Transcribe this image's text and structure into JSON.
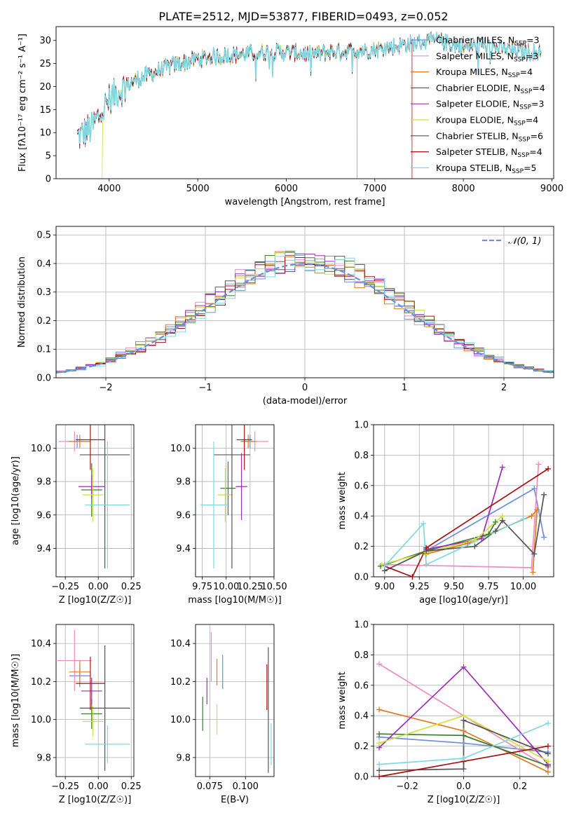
{
  "page_title": "PLATE=2512, MJD=53877, FIBERID=0493, z=0.052",
  "colors": {
    "Chabrier MILES": "#6b8ee0",
    "Salpeter MILES": "#f08cc0",
    "Kroupa MILES": "#e07a20",
    "Chabrier ELODIE": "#3c7a2e",
    "Salpeter ELODIE": "#9b2fb8",
    "Kroupa ELODIE": "#cfe040",
    "Chabrier STELIB": "#555555",
    "Salpeter STELIB": "#a81010",
    "Kroupa STELIB": "#7fd8e0",
    "normal_curve": "#6b8ee0",
    "grid": "#b0b0b0"
  },
  "chart_data": [
    {
      "type": "line",
      "id": "spectrum",
      "title": "PLATE=2512, MJD=53877, FIBERID=0493, z=0.052",
      "xlabel": "wavelength [Angstrom, rest frame]",
      "ylabel": "Flux [fλ10⁻¹⁷ erg cm⁻² s⁻¹ A⁻¹]",
      "xlim": [
        3400,
        9020
      ],
      "ylim": [
        0,
        33
      ],
      "xticks": [
        4000,
        5000,
        6000,
        7000,
        8000,
        9000
      ],
      "yticks": [
        0,
        5,
        10,
        15,
        20,
        25,
        30
      ],
      "grid": false,
      "legend_position": "right",
      "envelope_x": [
        3640,
        3800,
        3900,
        4000,
        4100,
        4300,
        4500,
        4700,
        5000,
        5200,
        5500,
        5800,
        6000,
        6300,
        6500,
        7000,
        7300,
        7500,
        7700,
        8000,
        8200,
        8500,
        8700
      ],
      "envelope_y": [
        9,
        11,
        14,
        17,
        19,
        21.5,
        23,
        24.5,
        26,
        26.5,
        27,
        27.5,
        27.5,
        27,
        27.5,
        28,
        29,
        29.5,
        30,
        28.5,
        29,
        28,
        27.5
      ],
      "series": [
        {
          "name": "Chabrier MILES, N_SSP=3",
          "color_key": "Chabrier MILES",
          "x_start": 3640,
          "x_end": 8880
        },
        {
          "name": "Salpeter MILES, N_SSP=3",
          "color_key": "Salpeter MILES",
          "x_start": 3640,
          "x_end": 8880
        },
        {
          "name": "Kroupa MILES, N_SSP=4",
          "color_key": "Kroupa MILES",
          "x_start": 3640,
          "x_end": 8880
        },
        {
          "name": "Chabrier ELODIE, N_SSP=4",
          "color_key": "Chabrier ELODIE",
          "x_start": 3640,
          "x_end": 6800
        },
        {
          "name": "Salpeter ELODIE, N_SSP=3",
          "color_key": "Salpeter ELODIE",
          "x_start": 3640,
          "x_end": 6800
        },
        {
          "name": "Kroupa ELODIE, N_SSP=4",
          "color_key": "Kroupa ELODIE",
          "x_start": 3920,
          "x_end": 6800
        },
        {
          "name": "Chabrier STELIB, N_SSP=6",
          "color_key": "Chabrier STELIB",
          "x_start": 3640,
          "x_end": 8880
        },
        {
          "name": "Salpeter STELIB, N_SSP=4",
          "color_key": "Salpeter STELIB",
          "x_start": 3640,
          "x_end": 7420
        },
        {
          "name": "Kroupa STELIB, N_SSP=5",
          "color_key": "Kroupa STELIB",
          "x_start": 3640,
          "x_end": 8880
        }
      ]
    },
    {
      "type": "histogram",
      "id": "residuals",
      "xlabel": "(data-model)/error",
      "ylabel": "Normed distribution",
      "xlim": [
        -2.5,
        2.5
      ],
      "ylim": [
        0,
        0.53
      ],
      "xticks": [
        -2,
        -1,
        0,
        1,
        2
      ],
      "yticks": [
        0.0,
        0.1,
        0.2,
        0.3,
        0.4,
        0.5
      ],
      "grid": true,
      "legend_position": "top-right",
      "legend_label": "𝒩(0, 1)",
      "bin_width": 0.1,
      "model_curve": "normal pdf, mean 0, sigma 1"
    },
    {
      "type": "scatter",
      "id": "age_vs_Z",
      "xlabel": "Z [log10(Z/Z☉)]",
      "ylabel": "age [log10(age/yr)]",
      "xlim": [
        -0.32,
        0.27
      ],
      "ylim": [
        9.23,
        10.14
      ],
      "xticks": [
        -0.25,
        0.0,
        0.25
      ],
      "yticks": [
        9.4,
        9.6,
        9.8,
        10.0
      ],
      "grid": true,
      "points": [
        {
          "color_key": "Chabrier MILES",
          "x": -0.16,
          "xerr": 0.08,
          "y": 10.04,
          "yerr": 0.04
        },
        {
          "color_key": "Salpeter MILES",
          "x": -0.18,
          "xerr": 0.12,
          "y": 10.04,
          "yerr": 0.06
        },
        {
          "color_key": "Kroupa MILES",
          "x": -0.14,
          "xerr": 0.08,
          "y": 10.04,
          "yerr": 0.04
        },
        {
          "color_key": "Chabrier ELODIE",
          "x": -0.05,
          "xerr": 0.08,
          "y": 9.75,
          "yerr": 0.16
        },
        {
          "color_key": "Salpeter ELODIE",
          "x": -0.05,
          "xerr": 0.1,
          "y": 9.77,
          "yerr": 0.07
        },
        {
          "color_key": "Kroupa ELODIE",
          "x": -0.04,
          "xerr": 0.08,
          "y": 9.72,
          "yerr": 0.16
        },
        {
          "color_key": "Chabrier STELIB",
          "x": 0.05,
          "xerr": 0.19,
          "y": 9.96,
          "yerr": 0.68
        },
        {
          "color_key": "Salpeter STELIB",
          "x": -0.06,
          "xerr": 0.11,
          "y": 10.05,
          "yerr": 0.18
        },
        {
          "color_key": "Kroupa STELIB",
          "x": 0.07,
          "xerr": 0.17,
          "y": 9.66,
          "yerr": 0.38
        }
      ]
    },
    {
      "type": "scatter",
      "id": "age_vs_mass",
      "xlabel": "mass [log10(M/M☉)]",
      "ylabel": "",
      "xlim": [
        9.68,
        10.5
      ],
      "ylim": [
        9.23,
        10.14
      ],
      "xticks": [
        9.75,
        10.0,
        10.25,
        10.5
      ],
      "yticks": [
        9.4,
        9.6,
        9.8,
        10.0
      ],
      "grid": true,
      "points": [
        {
          "color_key": "Chabrier MILES",
          "x": 10.25,
          "xerr": 0.08,
          "y": 10.04,
          "yerr": 0.04
        },
        {
          "color_key": "Salpeter MILES",
          "x": 10.3,
          "xerr": 0.14,
          "y": 10.04,
          "yerr": 0.06
        },
        {
          "color_key": "Kroupa MILES",
          "x": 10.23,
          "xerr": 0.08,
          "y": 10.04,
          "yerr": 0.04
        },
        {
          "color_key": "Chabrier ELODIE",
          "x": 10.02,
          "xerr": 0.08,
          "y": 9.76,
          "yerr": 0.16
        },
        {
          "color_key": "Salpeter ELODIE",
          "x": 10.16,
          "xerr": 0.06,
          "y": 9.77,
          "yerr": 0.2
        },
        {
          "color_key": "Kroupa ELODIE",
          "x": 9.99,
          "xerr": 0.08,
          "y": 9.72,
          "yerr": 0.16
        },
        {
          "color_key": "Chabrier STELIB",
          "x": 10.06,
          "xerr": 0.19,
          "y": 9.96,
          "yerr": 0.68
        },
        {
          "color_key": "Salpeter STELIB",
          "x": 10.19,
          "xerr": 0.08,
          "y": 10.05,
          "yerr": 0.18
        },
        {
          "color_key": "Kroupa STELIB",
          "x": 9.87,
          "xerr": 0.14,
          "y": 9.66,
          "yerr": 0.38
        }
      ]
    },
    {
      "type": "line",
      "id": "weight_vs_age",
      "xlabel": "age [log10(age/yr)]",
      "ylabel": "mass weight",
      "xlim": [
        8.92,
        10.22
      ],
      "ylim": [
        0,
        1.0
      ],
      "xticks": [
        9.0,
        9.25,
        9.5,
        9.75,
        10.0
      ],
      "yticks": [
        0.0,
        0.2,
        0.4,
        0.6,
        0.8,
        1.0
      ],
      "grid": true,
      "series": [
        {
          "color_key": "Chabrier MILES",
          "x": [
            9.3,
            10.08,
            10.15
          ],
          "y": [
            0.17,
            0.58,
            0.26
          ]
        },
        {
          "color_key": "Salpeter MILES",
          "x": [
            9.0,
            10.06,
            10.11
          ],
          "y": [
            0.08,
            0.06,
            0.74
          ]
        },
        {
          "color_key": "Kroupa MILES",
          "x": [
            9.3,
            9.6,
            10.06,
            10.1,
            10.07
          ],
          "y": [
            0.15,
            0.22,
            0.4,
            0.44,
            0.03
          ]
        },
        {
          "color_key": "Chabrier ELODIE",
          "x": [
            8.97,
            9.3,
            9.75,
            9.8
          ],
          "y": [
            0.07,
            0.17,
            0.28,
            0.36
          ]
        },
        {
          "color_key": "Salpeter ELODIE",
          "x": [
            9.3,
            9.7,
            9.85
          ],
          "y": [
            0.18,
            0.25,
            0.72
          ]
        },
        {
          "color_key": "Kroupa ELODIE",
          "x": [
            8.98,
            9.3,
            9.65,
            9.85
          ],
          "y": [
            0.08,
            0.16,
            0.24,
            0.4
          ]
        },
        {
          "color_key": "Chabrier STELIB",
          "x": [
            9.0,
            9.3,
            9.65,
            9.8,
            9.85,
            10.08,
            10.15
          ],
          "y": [
            0.04,
            0.17,
            0.2,
            0.3,
            0.37,
            0.15,
            0.54
          ]
        },
        {
          "color_key": "Salpeter STELIB",
          "x": [
            9.0,
            9.2,
            9.3,
            10.18
          ],
          "y": [
            0.07,
            0.0,
            0.19,
            0.71
          ]
        },
        {
          "color_key": "Kroupa STELIB",
          "x": [
            9.0,
            9.28,
            9.3,
            10.0
          ],
          "y": [
            0.07,
            0.35,
            0.08,
            0.38
          ]
        }
      ]
    },
    {
      "type": "scatter",
      "id": "mass_vs_Z",
      "xlabel": "Z [log10(Z/Z☉)]",
      "ylabel": "mass [log10(M/M☉)]",
      "xlim": [
        -0.32,
        0.27
      ],
      "ylim": [
        9.7,
        10.5
      ],
      "xticks": [
        -0.25,
        0.0,
        0.25
      ],
      "yticks": [
        9.8,
        10.0,
        10.2,
        10.4
      ],
      "grid": true,
      "points": [
        {
          "color_key": "Chabrier MILES",
          "x": -0.14,
          "xerr": 0.08,
          "y": 10.23,
          "yerr": 0.06
        },
        {
          "color_key": "Salpeter MILES",
          "x": -0.18,
          "xerr": 0.13,
          "y": 10.31,
          "yerr": 0.16
        },
        {
          "color_key": "Kroupa MILES",
          "x": -0.14,
          "xerr": 0.08,
          "y": 10.25,
          "yerr": 0.06
        },
        {
          "color_key": "Chabrier ELODIE",
          "x": -0.05,
          "xerr": 0.08,
          "y": 10.03,
          "yerr": 0.08
        },
        {
          "color_key": "Salpeter ELODIE",
          "x": -0.05,
          "xerr": 0.08,
          "y": 10.15,
          "yerr": 0.07
        },
        {
          "color_key": "Kroupa ELODIE",
          "x": -0.04,
          "xerr": 0.08,
          "y": 9.99,
          "yerr": 0.08
        },
        {
          "color_key": "Chabrier STELIB",
          "x": 0.05,
          "xerr": 0.19,
          "y": 10.06,
          "yerr": 0.33
        },
        {
          "color_key": "Salpeter STELIB",
          "x": -0.06,
          "xerr": 0.11,
          "y": 10.19,
          "yerr": 0.14
        },
        {
          "color_key": "Kroupa STELIB",
          "x": 0.07,
          "xerr": 0.17,
          "y": 9.87,
          "yerr": 0.1
        }
      ]
    },
    {
      "type": "scatter",
      "id": "mass_vs_ebv",
      "xlabel": "E(B-V)",
      "ylabel": "",
      "xlim": [
        0.065,
        0.12
      ],
      "ylim": [
        9.7,
        10.5
      ],
      "xticks": [
        0.075,
        0.1
      ],
      "yticks": [
        9.8,
        10.0,
        10.2,
        10.4
      ],
      "grid": true,
      "points": [
        {
          "color_key": "Chabrier MILES",
          "x": 0.084,
          "y": 10.25,
          "yerr": 0.09
        },
        {
          "color_key": "Salpeter MILES",
          "x": 0.076,
          "y": 10.33,
          "yerr": 0.13
        },
        {
          "color_key": "Kroupa MILES",
          "x": 0.08,
          "y": 10.25,
          "yerr": 0.07
        },
        {
          "color_key": "Chabrier ELODIE",
          "x": 0.07,
          "y": 10.03,
          "yerr": 0.09
        },
        {
          "color_key": "Salpeter ELODIE",
          "x": 0.073,
          "y": 10.15,
          "yerr": 0.07
        },
        {
          "color_key": "Kroupa ELODIE",
          "x": 0.08,
          "y": 10.0,
          "yerr": 0.08
        },
        {
          "color_key": "Chabrier STELIB",
          "x": 0.116,
          "y": 10.05,
          "yerr": 0.33
        },
        {
          "color_key": "Salpeter STELIB",
          "x": 0.115,
          "y": 10.17,
          "yerr": 0.12
        },
        {
          "color_key": "Kroupa STELIB",
          "x": 0.118,
          "y": 9.87,
          "yerr": 0.11
        }
      ]
    },
    {
      "type": "line",
      "id": "weight_vs_Z",
      "xlabel": "Z [log10(Z/Z☉)]",
      "ylabel": "mass weight",
      "xlim": [
        -0.32,
        0.32
      ],
      "ylim": [
        0,
        1.0
      ],
      "xticks": [
        -0.2,
        0.0,
        0.2
      ],
      "yticks": [
        0.0,
        0.2,
        0.4,
        0.6,
        0.8,
        1.0
      ],
      "grid": true,
      "series": [
        {
          "color_key": "Chabrier MILES",
          "x": [
            -0.3,
            0.0,
            0.3
          ],
          "y": [
            0.26,
            0.22,
            0.16
          ]
        },
        {
          "color_key": "Salpeter MILES",
          "x": [
            -0.3,
            0.3
          ],
          "y": [
            0.74,
            0.06
          ]
        },
        {
          "color_key": "Kroupa MILES",
          "x": [
            -0.3,
            0.0,
            0.3
          ],
          "y": [
            0.44,
            0.3,
            0.03
          ]
        },
        {
          "color_key": "Chabrier ELODIE",
          "x": [
            -0.3,
            0.0,
            0.3
          ],
          "y": [
            0.28,
            0.27,
            0.07
          ]
        },
        {
          "color_key": "Salpeter ELODIE",
          "x": [
            -0.3,
            0.0,
            0.3
          ],
          "y": [
            0.19,
            0.72,
            0.08
          ]
        },
        {
          "color_key": "Kroupa ELODIE",
          "x": [
            -0.3,
            0.0,
            0.3
          ],
          "y": [
            0.22,
            0.4,
            0.1
          ]
        },
        {
          "color_key": "Chabrier STELIB",
          "x": [
            -0.3,
            0.0,
            0.0,
            0.3
          ],
          "y": [
            0.04,
            0.05,
            0.37,
            0.15
          ]
        },
        {
          "color_key": "Salpeter STELIB",
          "x": [
            -0.3,
            0.0,
            0.3
          ],
          "y": [
            0.0,
            0.1,
            0.2
          ]
        },
        {
          "color_key": "Kroupa STELIB",
          "x": [
            -0.3,
            0.0,
            0.3
          ],
          "y": [
            0.08,
            0.12,
            0.35
          ]
        }
      ]
    }
  ]
}
